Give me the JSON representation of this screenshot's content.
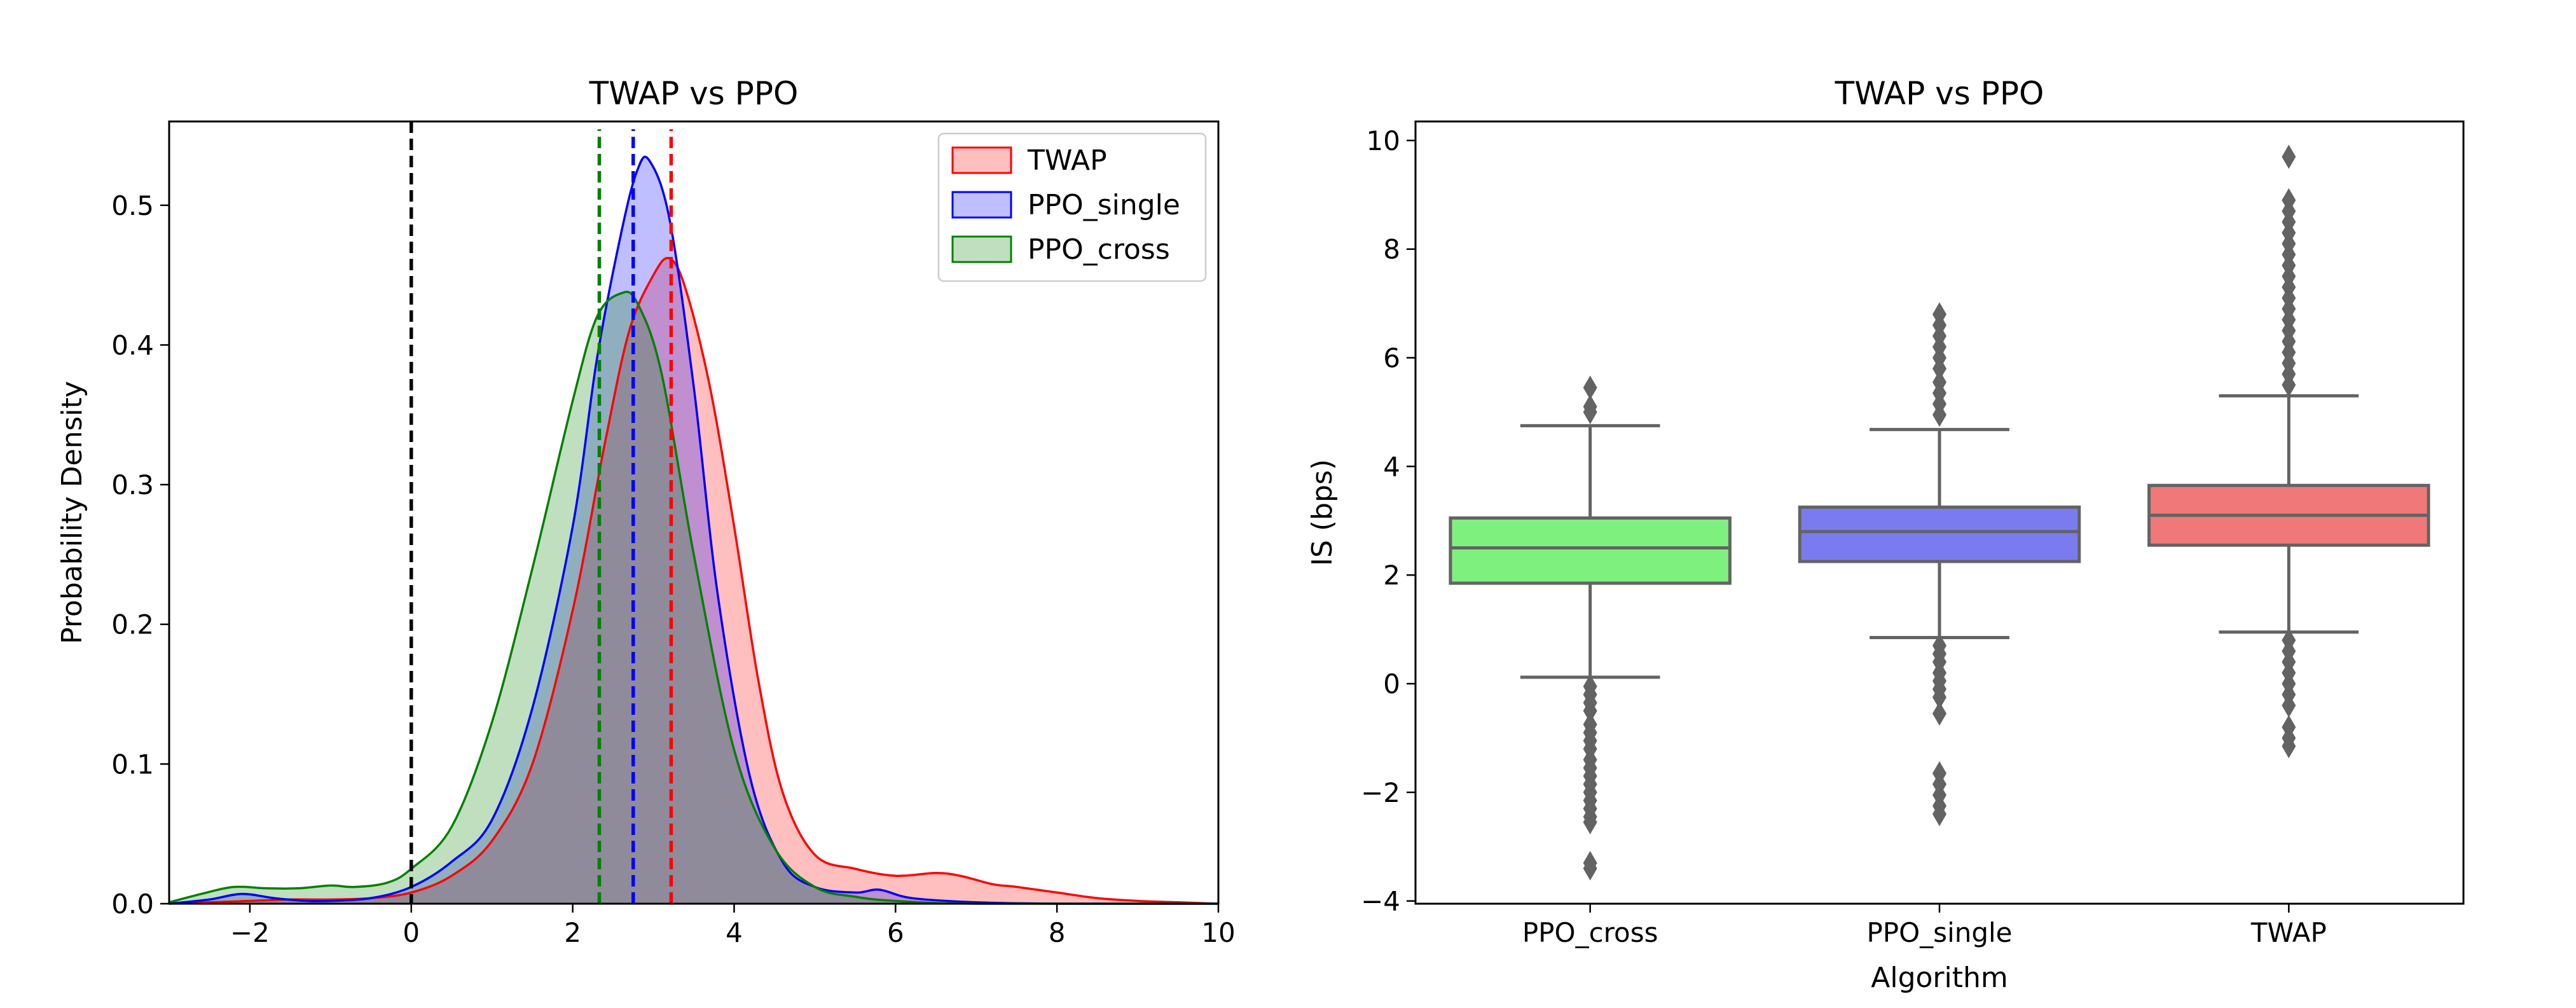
{
  "chart_data": [
    {
      "type": "area",
      "title": "TWAP vs PPO",
      "xlabel": "",
      "ylabel": "Probability Density",
      "xlim": [
        -3,
        10
      ],
      "ylim": [
        0,
        0.56
      ],
      "xticks": [
        -2,
        0,
        2,
        4,
        6,
        8,
        10
      ],
      "xtick_labels": [
        "−2",
        "0",
        "2",
        "4",
        "6",
        "8",
        "10"
      ],
      "yticks": [
        0.0,
        0.1,
        0.2,
        0.3,
        0.4,
        0.5
      ],
      "ytick_labels": [
        "0.0",
        "0.1",
        "0.2",
        "0.3",
        "0.4",
        "0.5"
      ],
      "legend_position": "top-right",
      "series": [
        {
          "name": "TWAP",
          "color": "#ff0000",
          "fill": "rgba(255,0,0,0.25)",
          "mean": 3.22,
          "x": [
            -3,
            -2.5,
            -2,
            -1.5,
            -1,
            -0.5,
            0,
            0.5,
            1,
            1.5,
            2,
            2.4,
            2.7,
            3.0,
            3.2,
            3.4,
            3.7,
            4.0,
            4.3,
            4.6,
            5.0,
            5.5,
            6.0,
            6.5,
            6.8,
            7.2,
            7.5,
            8.0,
            8.5,
            9.0,
            9.5,
            10
          ],
          "y": [
            0,
            0.001,
            0.002,
            0.003,
            0.003,
            0.004,
            0.008,
            0.02,
            0.045,
            0.1,
            0.21,
            0.33,
            0.41,
            0.45,
            0.462,
            0.44,
            0.37,
            0.27,
            0.16,
            0.08,
            0.035,
            0.025,
            0.02,
            0.022,
            0.02,
            0.014,
            0.012,
            0.008,
            0.004,
            0.002,
            0.001,
            0
          ],
          "mean_line_color": "#ff0000"
        },
        {
          "name": "PPO_single",
          "color": "#0000ff",
          "fill": "rgba(0,0,255,0.25)",
          "mean": 2.75,
          "x": [
            -3,
            -2.5,
            -2.1,
            -1.7,
            -1.3,
            -1,
            -0.5,
            0,
            0.5,
            1,
            1.5,
            2,
            2.3,
            2.6,
            2.8,
            2.95,
            3.2,
            3.5,
            3.8,
            4.2,
            4.6,
            5.0,
            5.5,
            5.8,
            6.2,
            7,
            8,
            10
          ],
          "y": [
            0,
            0.003,
            0.007,
            0.004,
            0.002,
            0.002,
            0.004,
            0.012,
            0.03,
            0.06,
            0.14,
            0.27,
            0.39,
            0.48,
            0.525,
            0.532,
            0.49,
            0.37,
            0.22,
            0.09,
            0.03,
            0.012,
            0.008,
            0.01,
            0.004,
            0.001,
            0,
            0
          ],
          "mean_line_color": "#0000ff"
        },
        {
          "name": "PPO_cross",
          "color": "#008000",
          "fill": "rgba(0,128,0,0.25)",
          "mean": 2.33,
          "x": [
            -3,
            -2.6,
            -2.2,
            -1.8,
            -1.4,
            -1,
            -0.7,
            -0.3,
            0,
            0.5,
            1,
            1.5,
            2,
            2.3,
            2.6,
            2.8,
            3.1,
            3.5,
            4.0,
            4.5,
            5.0,
            5.5,
            6,
            7,
            10
          ],
          "y": [
            0.001,
            0.007,
            0.012,
            0.011,
            0.011,
            0.013,
            0.012,
            0.015,
            0.025,
            0.055,
            0.13,
            0.24,
            0.36,
            0.42,
            0.437,
            0.43,
            0.38,
            0.25,
            0.11,
            0.04,
            0.012,
            0.005,
            0.002,
            0,
            0
          ],
          "mean_line_color": "#008000"
        }
      ],
      "reference_line": {
        "x": 0,
        "color": "#000000",
        "style": "dashed"
      }
    },
    {
      "type": "box",
      "title": "TWAP vs PPO",
      "xlabel": "Algorithm",
      "ylabel": "IS (bps)",
      "ylim": [
        -4.05,
        10.35
      ],
      "yticks": [
        -4,
        -2,
        0,
        2,
        4,
        6,
        8,
        10
      ],
      "ytick_labels": [
        "−4",
        "−2",
        "0",
        "2",
        "4",
        "6",
        "8",
        "10"
      ],
      "categories": [
        "PPO_cross",
        "PPO_single",
        "TWAP"
      ],
      "boxes": [
        {
          "category": "PPO_cross",
          "color": "#7ef07e",
          "q1": 1.85,
          "median": 2.5,
          "q3": 3.05,
          "whisker_low": 0.12,
          "whisker_high": 4.75,
          "outliers": [
            5.45,
            5.1,
            5.0,
            -0.05,
            -0.2,
            -0.35,
            -0.5,
            -0.75,
            -0.9,
            -1.05,
            -1.2,
            -1.4,
            -1.55,
            -1.7,
            -1.85,
            -2.0,
            -2.15,
            -2.3,
            -2.45,
            -2.55,
            -3.3,
            -3.4
          ]
        },
        {
          "category": "PPO_single",
          "color": "#7b7bf0",
          "q1": 2.25,
          "median": 2.8,
          "q3": 3.25,
          "whisker_low": 0.85,
          "whisker_high": 4.68,
          "outliers": [
            6.8,
            6.6,
            6.4,
            6.2,
            6.0,
            5.8,
            5.55,
            5.35,
            5.15,
            4.95,
            0.7,
            0.55,
            0.4,
            0.2,
            0.05,
            -0.1,
            -0.25,
            -0.55,
            -1.65,
            -1.85,
            -2.05,
            -2.25,
            -2.4
          ]
        },
        {
          "category": "TWAP",
          "color": "#f07878",
          "q1": 2.55,
          "median": 3.1,
          "q3": 3.65,
          "whisker_low": 0.95,
          "whisker_high": 5.3,
          "outliers": [
            9.7,
            8.9,
            8.7,
            8.5,
            8.3,
            8.1,
            7.9,
            7.7,
            7.5,
            7.3,
            7.1,
            6.9,
            6.7,
            6.5,
            6.3,
            6.1,
            5.9,
            5.7,
            5.5,
            0.8,
            0.6,
            0.4,
            0.2,
            0.0,
            -0.2,
            -0.4,
            -0.8,
            -1.0,
            -1.15
          ]
        }
      ]
    }
  ]
}
